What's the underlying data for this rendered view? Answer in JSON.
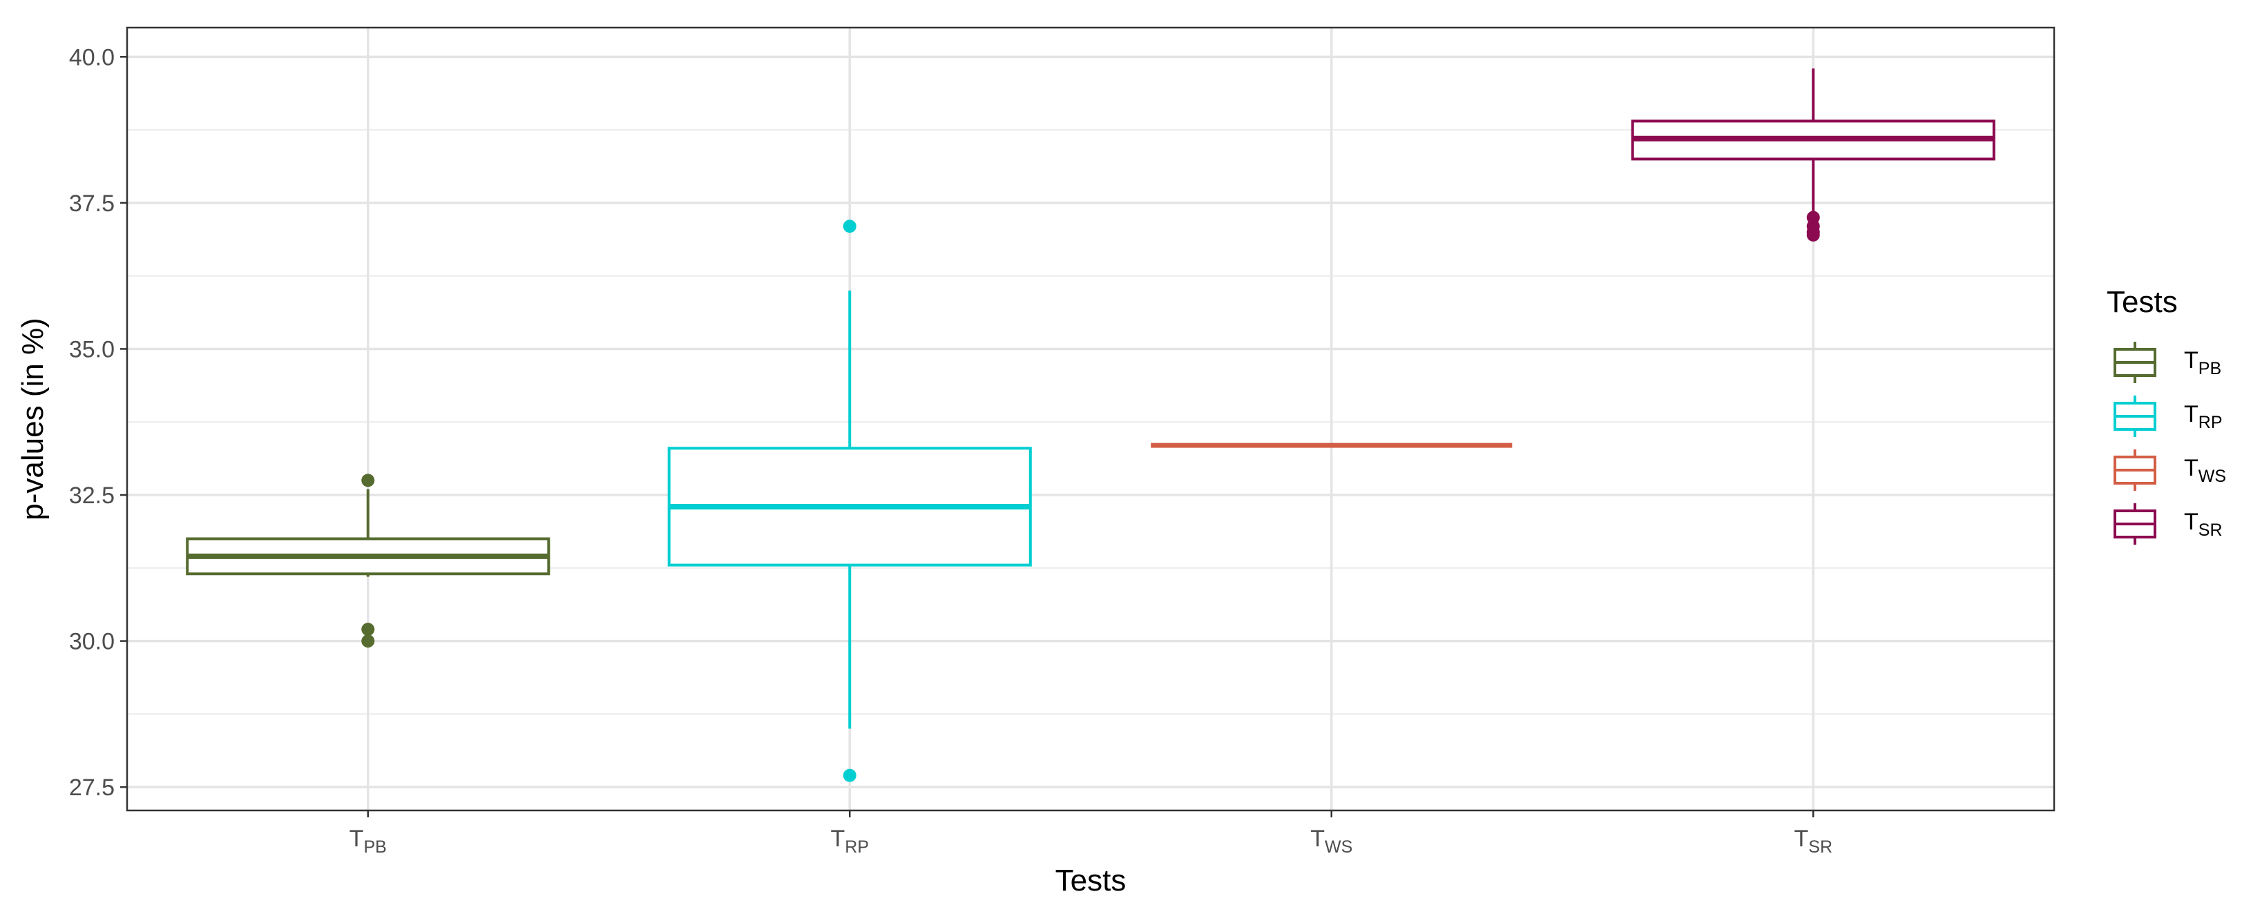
{
  "chart_data": {
    "type": "box",
    "xlabel": "Tests",
    "ylabel": "p-values (in %)",
    "ylim": [
      27.1,
      40.5
    ],
    "yticks": [
      "27.5",
      "30.0",
      "32.5",
      "35.0",
      "37.5",
      "40.0"
    ],
    "ytick_values": [
      27.5,
      30.0,
      32.5,
      35.0,
      37.5,
      40.0
    ],
    "grid": true,
    "legend": {
      "title": "Tests",
      "position": "right"
    },
    "categories": [
      {
        "base": "T",
        "sub": "PB",
        "color": "#556B2F"
      },
      {
        "base": "T",
        "sub": "RP",
        "color": "#00CED1"
      },
      {
        "base": "T",
        "sub": "WS",
        "color": "#D35E45"
      },
      {
        "base": "T",
        "sub": "SR",
        "color": "#8B0A50"
      }
    ],
    "boxes": [
      {
        "whisker_low": 31.1,
        "q1": 31.15,
        "median": 31.45,
        "q3": 31.75,
        "whisker_high": 32.6,
        "outliers": [
          32.75,
          30.2,
          30.0
        ]
      },
      {
        "whisker_low": 28.5,
        "q1": 31.3,
        "median": 32.3,
        "q3": 33.3,
        "whisker_high": 36.0,
        "outliers": [
          37.1,
          27.7
        ]
      },
      {
        "whisker_low": 33.35,
        "q1": 33.35,
        "median": 33.35,
        "q3": 33.35,
        "whisker_high": 33.35,
        "outliers": []
      },
      {
        "whisker_low": 37.3,
        "q1": 38.25,
        "median": 38.6,
        "q3": 38.9,
        "whisker_high": 39.8,
        "outliers": [
          37.25,
          37.1,
          37.0,
          36.95
        ]
      }
    ]
  }
}
